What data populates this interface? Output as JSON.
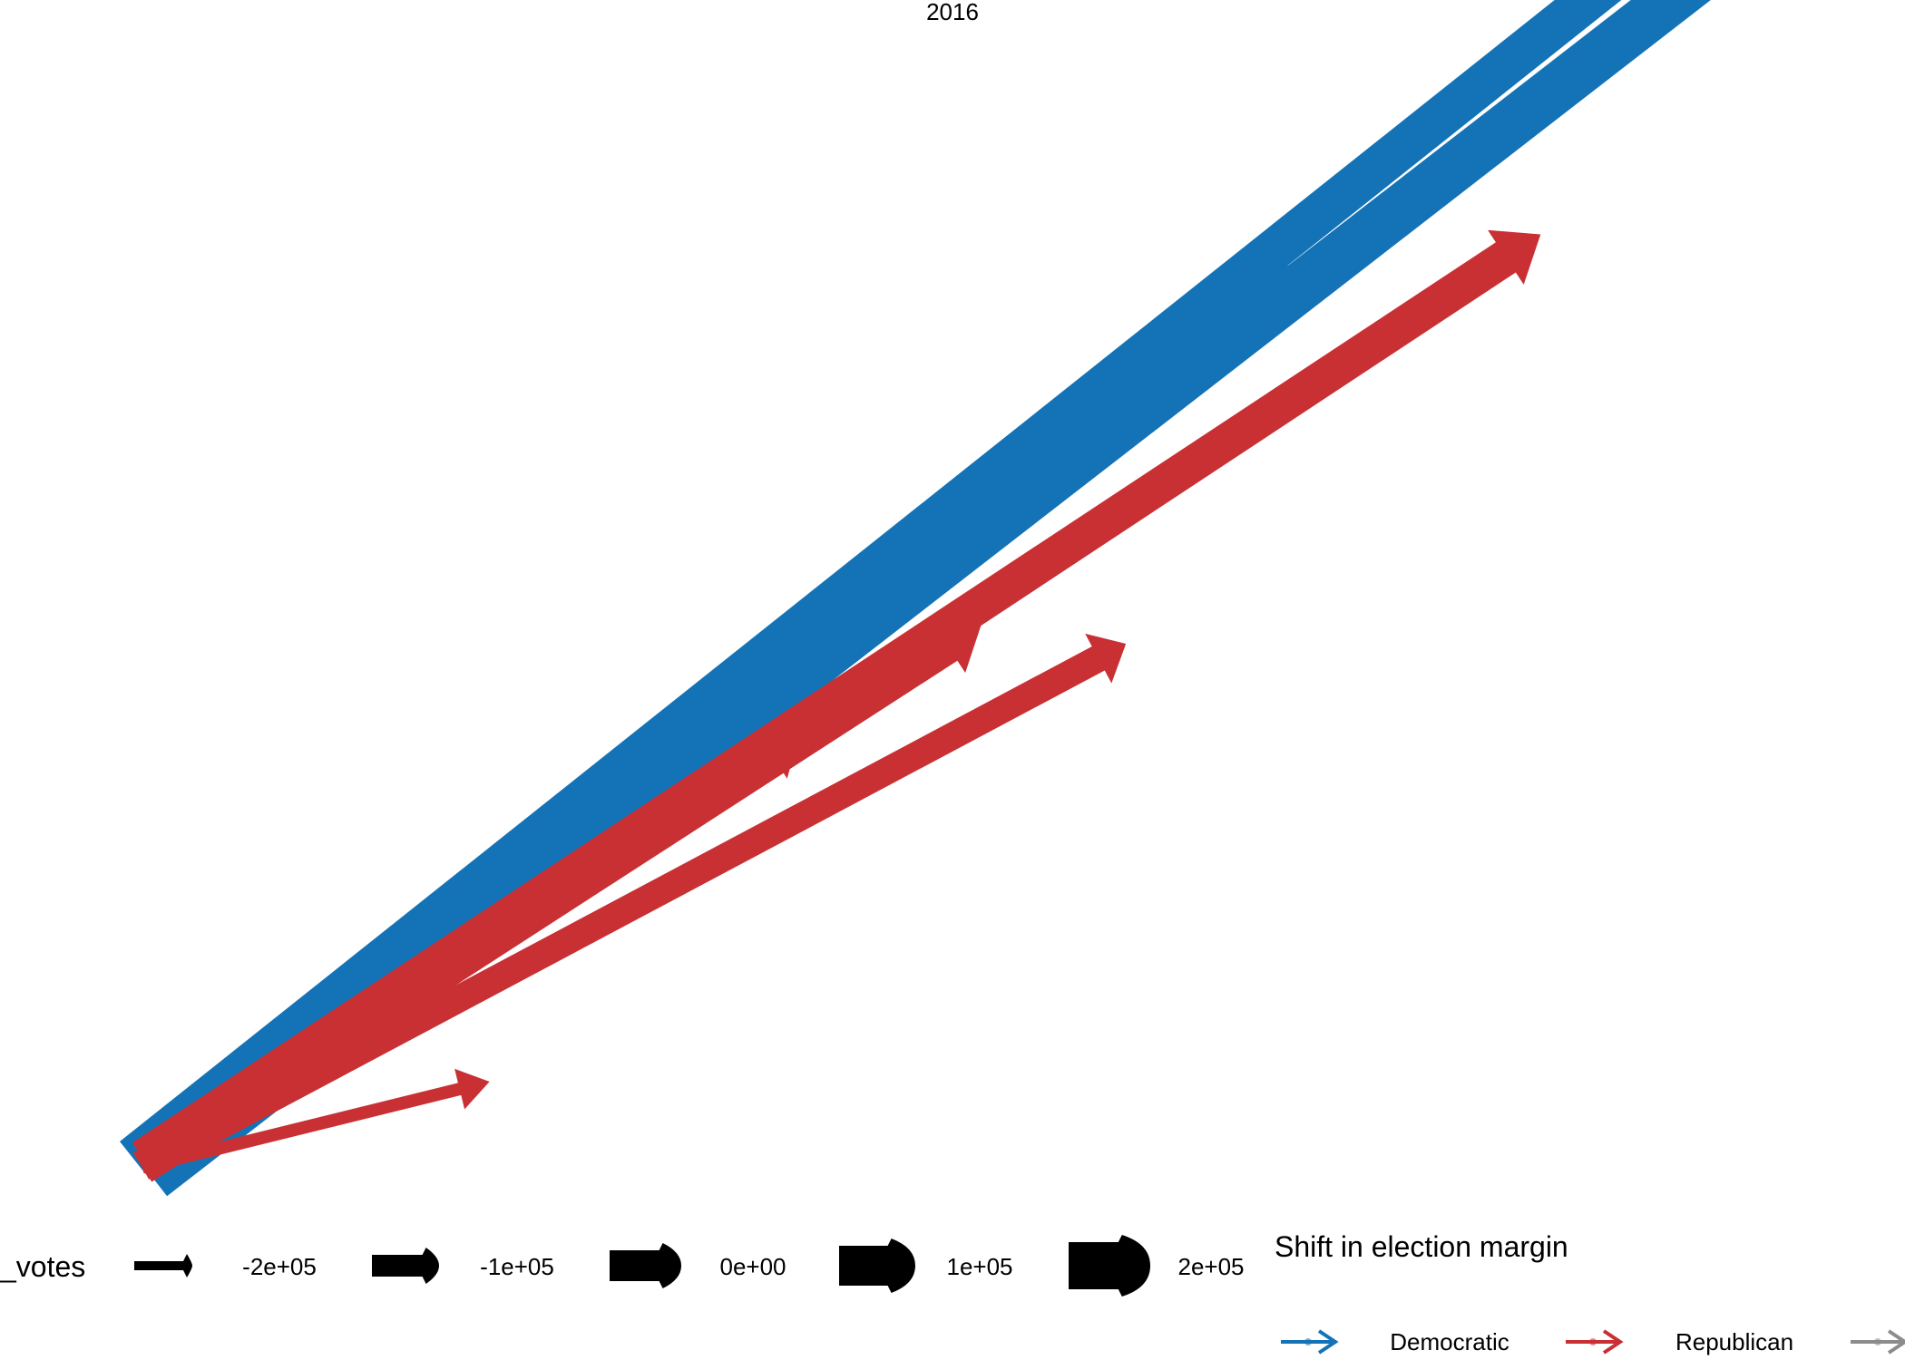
{
  "chart_data": {
    "type": "arrow-map",
    "title": "2016",
    "colors": {
      "Democratic": "#1473b6",
      "Republican": "#c93034",
      "Other": "#8c8c8c"
    },
    "arrows": [
      {
        "party": "Democratic",
        "from": [
          0.1,
          0.06
        ],
        "to": [
          1.8,
          1.43
        ],
        "width": 46
      },
      {
        "party": "Democratic",
        "from": [
          0.12,
          0.04
        ],
        "to": [
          1.84,
          1.39
        ],
        "width": 54
      },
      {
        "party": "Democratic",
        "from": [
          0.11,
          0.05
        ],
        "to": [
          1.3,
          1.01
        ],
        "width": 30
      },
      {
        "party": "Democratic",
        "from": [
          0.11,
          0.05
        ],
        "to": [
          1.02,
          0.79
        ],
        "width": 28
      },
      {
        "party": "Democratic",
        "from": [
          0.11,
          0.05
        ],
        "to": [
          0.82,
          0.63
        ],
        "width": 24
      },
      {
        "party": "Democratic",
        "from": [
          0.11,
          0.05
        ],
        "to": [
          0.95,
          0.73
        ],
        "width": 24
      },
      {
        "party": "Democratic",
        "from": [
          0.11,
          0.05
        ],
        "to": [
          0.56,
          0.42
        ],
        "width": 20
      },
      {
        "party": "Republican",
        "from": [
          0.11,
          0.06
        ],
        "to": [
          1.56,
          1.03
        ],
        "width": 40
      },
      {
        "party": "Republican",
        "from": [
          0.11,
          0.05
        ],
        "to": [
          0.98,
          0.62
        ],
        "width": 38
      },
      {
        "party": "Republican",
        "from": [
          0.11,
          0.05
        ],
        "to": [
          1.13,
          0.6
        ],
        "width": 30
      },
      {
        "party": "Republican",
        "from": [
          0.11,
          0.05
        ],
        "to": [
          0.79,
          0.5
        ],
        "width": 28
      },
      {
        "party": "Republican",
        "from": [
          0.11,
          0.05
        ],
        "to": [
          0.42,
          0.25
        ],
        "width": 22
      },
      {
        "party": "Republican",
        "from": [
          0.11,
          0.05
        ],
        "to": [
          0.47,
          0.14
        ],
        "width": 14
      }
    ],
    "size_legend": {
      "title": "_votes",
      "entries": [
        "-2e+05",
        "-1e+05",
        "0e+00",
        "1e+05",
        "2e+05"
      ]
    },
    "color_legend": {
      "title": "Shift in election margin",
      "entries": [
        "Democratic",
        "Republican",
        "Other"
      ]
    }
  }
}
